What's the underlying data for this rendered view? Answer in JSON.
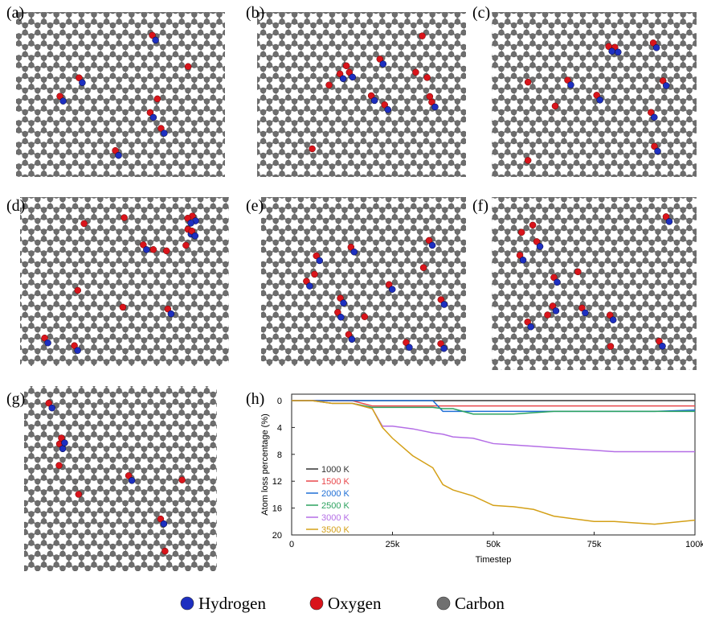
{
  "panel_labels": [
    "(a)",
    "(b)",
    "(c)",
    "(d)",
    "(e)",
    "(f)",
    "(g)",
    "(h)"
  ],
  "legend": [
    {
      "name": "Hydrogen",
      "color": "#1d2fc0"
    },
    {
      "name": "Oxygen",
      "color": "#d9141b"
    },
    {
      "name": "Carbon",
      "color": "#707070"
    }
  ],
  "chart_data": {
    "type": "line",
    "x_label": "Timestep",
    "y_label": "Atom loss percentage (%)",
    "xlim": [
      0,
      100000
    ],
    "xticks": [
      {
        "value": 0,
        "label": "0"
      },
      {
        "value": 25000,
        "label": "25k"
      },
      {
        "value": 50000,
        "label": "50k"
      },
      {
        "value": 75000,
        "label": "75k"
      },
      {
        "value": 100000,
        "label": "100k"
      }
    ],
    "ylim": [
      20,
      0
    ],
    "yticks": [
      0,
      4,
      8,
      12,
      16,
      20
    ],
    "x": [
      0,
      5000,
      10000,
      15000,
      20000,
      22500,
      25000,
      30000,
      35000,
      37500,
      40000,
      45000,
      50000,
      55000,
      60000,
      65000,
      70000,
      75000,
      80000,
      85000,
      90000,
      100000
    ],
    "series": [
      {
        "name": "1000 K",
        "color": "#333333",
        "values": [
          0,
          0,
          0,
          0,
          0,
          0,
          0,
          0,
          0,
          0,
          0,
          0,
          0,
          0,
          0,
          0,
          0,
          0,
          0,
          0,
          0,
          0
        ]
      },
      {
        "name": "1500 K",
        "color": "#e8474b",
        "values": [
          0,
          0,
          0,
          0,
          0.8,
          0.8,
          0.8,
          0.8,
          0.8,
          0.8,
          0.8,
          0.8,
          0.8,
          0.8,
          0.8,
          0.8,
          0.8,
          0.8,
          0.8,
          0.8,
          0.8,
          0.8
        ]
      },
      {
        "name": "2000 K",
        "color": "#1f6fd6",
        "values": [
          0,
          0,
          0,
          0,
          0,
          0,
          0,
          0,
          0,
          1.6,
          1.6,
          1.6,
          1.6,
          1.6,
          1.6,
          1.6,
          1.6,
          1.6,
          1.6,
          1.6,
          1.6,
          1.4
        ]
      },
      {
        "name": "2500 K",
        "color": "#2ca25f",
        "values": [
          0,
          0,
          0.4,
          0.4,
          1.0,
          1.0,
          1.0,
          1.0,
          1.0,
          1.2,
          1.2,
          2.0,
          2.0,
          2.0,
          1.8,
          1.6,
          1.6,
          1.6,
          1.6,
          1.6,
          1.6,
          1.6
        ]
      },
      {
        "name": "3000 K",
        "color": "#b46ee6",
        "values": [
          0,
          0,
          0.4,
          0.4,
          1.2,
          3.8,
          3.8,
          4.2,
          4.8,
          5.0,
          5.4,
          5.6,
          6.4,
          6.6,
          6.8,
          7.0,
          7.2,
          7.4,
          7.6,
          7.6,
          7.6,
          7.6
        ]
      },
      {
        "name": "3500 K",
        "color": "#d4a017",
        "values": [
          0,
          0,
          0.4,
          0.4,
          1.2,
          4.0,
          5.6,
          8.2,
          10.0,
          12.5,
          13.3,
          14.2,
          15.6,
          15.8,
          16.2,
          17.2,
          17.6,
          18.0,
          18.0,
          18.2,
          18.4,
          17.8
        ]
      }
    ]
  }
}
